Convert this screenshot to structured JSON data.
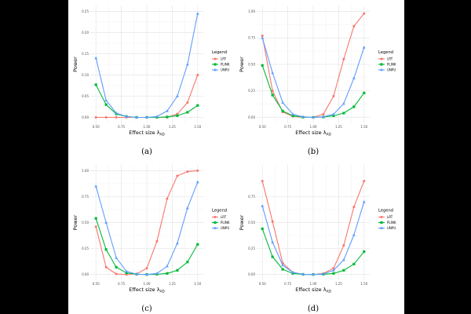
{
  "figure": {
    "legend_title": "Legend",
    "xlabel": "Effect size λ_AD",
    "xlabel_main": "Effect size λ",
    "xlabel_sub": "AD",
    "ylabel": "Power"
  },
  "chart_data": [
    {
      "type": "line",
      "panel": "(a)",
      "caption": "(a)",
      "title": "",
      "xlabel": "Effect size λ_AD",
      "ylabel": "Power",
      "xlim": [
        0.5,
        1.5
      ],
      "ylim": [
        0,
        0.25
      ],
      "xticks": [
        "0.50",
        "0.75",
        "1.00",
        "1.25",
        "1.50"
      ],
      "yticks": [
        "0.00",
        "0.05",
        "0.10",
        "0.15",
        "0.20",
        "0.25"
      ],
      "grid": true,
      "legend_position": "right",
      "x": [
        0.5,
        0.6,
        0.7,
        0.8,
        0.9,
        1.0,
        1.1,
        1.2,
        1.3,
        1.4,
        1.5
      ],
      "series": [
        {
          "name": "LRT",
          "color": "#F8766D",
          "marker": "circle",
          "values": [
            0.0,
            0.0,
            0.0,
            0.0,
            0.0,
            0.0,
            0.0,
            0.0,
            0.008,
            0.035,
            0.1
          ]
        },
        {
          "name": "PLINK",
          "color": "#00BA38",
          "marker": "square",
          "values": [
            0.077,
            0.03,
            0.008,
            0.002,
            0.0,
            0.0,
            0.0,
            0.001,
            0.004,
            0.012,
            0.028
          ]
        },
        {
          "name": "UNPU",
          "color": "#619CFF",
          "marker": "triangle",
          "values": [
            0.14,
            0.04,
            0.01,
            0.002,
            0.0,
            0.0,
            0.002,
            0.015,
            0.05,
            0.125,
            0.245
          ]
        }
      ]
    },
    {
      "type": "line",
      "panel": "(b)",
      "caption": "(b)",
      "title": "",
      "xlabel": "Effect size λ_AD",
      "ylabel": "Power",
      "xlim": [
        0.5,
        1.5
      ],
      "ylim": [
        0,
        1.0
      ],
      "xticks": [
        "0.50",
        "0.75",
        "1.00",
        "1.25",
        "1.50"
      ],
      "yticks": [
        "0.00",
        "0.25",
        "0.50",
        "0.75",
        "1.00"
      ],
      "grid": true,
      "legend_position": "right",
      "x": [
        0.5,
        0.6,
        0.7,
        0.8,
        0.9,
        1.0,
        1.1,
        1.2,
        1.3,
        1.4,
        1.5
      ],
      "series": [
        {
          "name": "LRT",
          "color": "#F8766D",
          "marker": "circle",
          "values": [
            0.77,
            0.25,
            0.05,
            0.01,
            0.0,
            0.0,
            0.03,
            0.2,
            0.55,
            0.86,
            0.98
          ]
        },
        {
          "name": "PLINK",
          "color": "#00BA38",
          "marker": "square",
          "values": [
            0.49,
            0.21,
            0.06,
            0.015,
            0.002,
            0.0,
            0.003,
            0.015,
            0.04,
            0.1,
            0.23
          ]
        },
        {
          "name": "UNPU",
          "color": "#619CFF",
          "marker": "triangle",
          "values": [
            0.75,
            0.42,
            0.14,
            0.03,
            0.005,
            0.0,
            0.005,
            0.03,
            0.13,
            0.37,
            0.66
          ]
        }
      ]
    },
    {
      "type": "line",
      "panel": "(c)",
      "caption": "(c)",
      "title": "",
      "xlabel": "Effect size λ_AD",
      "ylabel": "Power",
      "xlim": [
        0.5,
        1.5
      ],
      "ylim": [
        0,
        1.0
      ],
      "xticks": [
        "0.50",
        "0.75",
        "1.00",
        "1.25",
        "1.50"
      ],
      "yticks": [
        "0.00",
        "0.25",
        "0.50",
        "0.75",
        "1.00"
      ],
      "grid": true,
      "legend_position": "right",
      "x": [
        0.5,
        0.6,
        0.7,
        0.8,
        0.9,
        1.0,
        1.1,
        1.2,
        1.3,
        1.4,
        1.5
      ],
      "series": [
        {
          "name": "LRT",
          "color": "#F8766D",
          "marker": "circle",
          "values": [
            0.46,
            0.07,
            0.005,
            0.0,
            0.005,
            0.06,
            0.32,
            0.73,
            0.95,
            0.99,
            1.0
          ]
        },
        {
          "name": "PLINK",
          "color": "#00BA38",
          "marker": "square",
          "values": [
            0.54,
            0.24,
            0.07,
            0.015,
            0.002,
            0.0,
            0.002,
            0.01,
            0.04,
            0.12,
            0.29
          ]
        },
        {
          "name": "UNPU",
          "color": "#619CFF",
          "marker": "triangle",
          "values": [
            0.85,
            0.5,
            0.16,
            0.03,
            0.003,
            0.0,
            0.01,
            0.08,
            0.3,
            0.64,
            0.89
          ]
        }
      ]
    },
    {
      "type": "line",
      "panel": "(d)",
      "caption": "(d)",
      "title": "",
      "xlabel": "Effect size λ_AD",
      "ylabel": "Power",
      "xlim": [
        0.5,
        1.5
      ],
      "ylim": [
        0,
        1.0
      ],
      "xticks": [
        "0.50",
        "0.75",
        "1.00",
        "1.25",
        "1.50"
      ],
      "yticks": [
        "0.00",
        "0.25",
        "0.50",
        "0.75"
      ],
      "grid": true,
      "legend_position": "right",
      "x": [
        0.5,
        0.6,
        0.7,
        0.8,
        0.9,
        1.0,
        1.1,
        1.2,
        1.3,
        1.4,
        1.5
      ],
      "series": [
        {
          "name": "LRT",
          "color": "#F8766D",
          "marker": "circle",
          "values": [
            0.9,
            0.51,
            0.11,
            0.02,
            0.002,
            0.0,
            0.01,
            0.06,
            0.28,
            0.65,
            0.9
          ]
        },
        {
          "name": "PLINK",
          "color": "#00BA38",
          "marker": "square",
          "values": [
            0.44,
            0.17,
            0.05,
            0.01,
            0.001,
            0.0,
            0.002,
            0.01,
            0.04,
            0.1,
            0.22
          ]
        },
        {
          "name": "UNPU",
          "color": "#619CFF",
          "marker": "triangle",
          "values": [
            0.66,
            0.31,
            0.09,
            0.02,
            0.002,
            0.0,
            0.005,
            0.04,
            0.14,
            0.38,
            0.7
          ]
        }
      ]
    }
  ]
}
